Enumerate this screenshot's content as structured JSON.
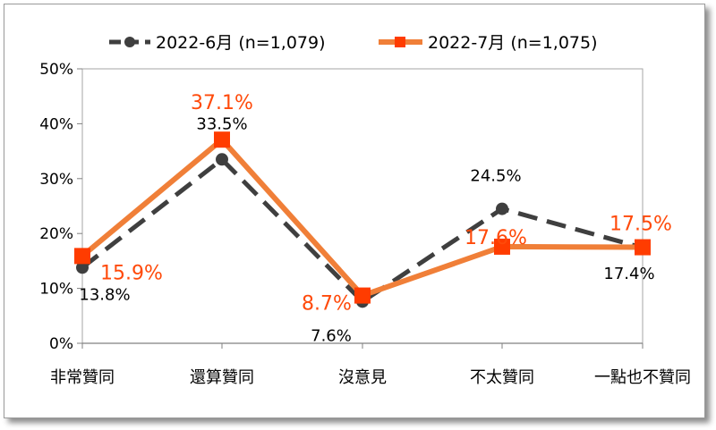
{
  "chart_data": {
    "type": "line",
    "categories": [
      "非常贊同",
      "還算贊同",
      "沒意見",
      "不太贊同",
      "一點也不贊同"
    ],
    "y_ticks": [
      "0%",
      "10%",
      "20%",
      "30%",
      "40%",
      "50%"
    ],
    "ylim": [
      0,
      50
    ],
    "legend_position": "top",
    "series": [
      {
        "name": "2022-6月  (n=1,079)",
        "values": [
          13.8,
          33.5,
          7.6,
          24.5,
          17.4
        ],
        "labels": [
          "13.8%",
          "33.5%",
          "7.6%",
          "24.5%",
          "17.4%"
        ],
        "color": "#3f3f3f",
        "style": "dashed",
        "marker": "circle"
      },
      {
        "name": "2022-7月  (n=1,075)",
        "values": [
          15.9,
          37.1,
          8.7,
          17.6,
          17.5
        ],
        "labels": [
          "15.9%",
          "37.1%",
          "8.7%",
          "17.6%",
          "17.5%"
        ],
        "color": "#f07f38",
        "marker_color": "#ff3c00",
        "style": "solid",
        "marker": "square"
      }
    ]
  }
}
